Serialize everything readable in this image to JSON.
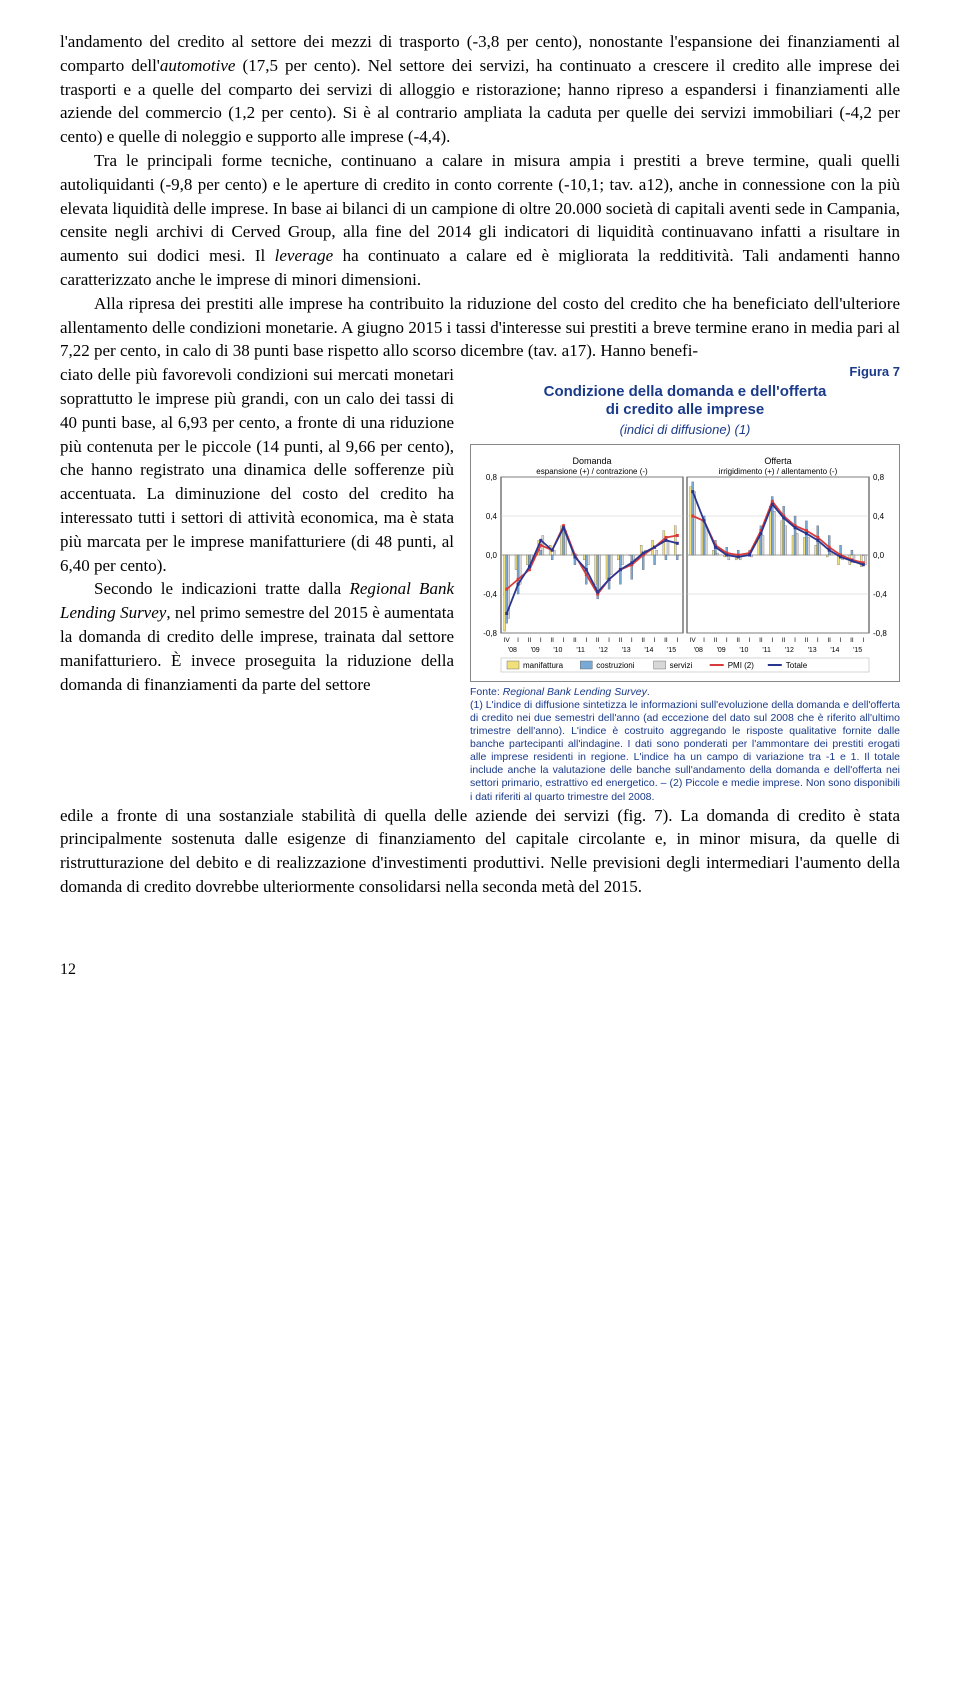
{
  "page": {
    "number": "12"
  },
  "para1": "l'andamento del credito al settore dei mezzi di trasporto (-3,8 per cento), nonostante l'espansione dei finanziamenti al comparto dell'",
  "para1_it": "automotive",
  "para1b": " (17,5 per cento). Nel settore dei servizi, ha continuato a crescere il credito alle imprese dei trasporti e a quelle del comparto dei servizi di alloggio e ristorazione; hanno ripreso a espandersi i finanziamenti alle aziende del commercio (1,2 per cento). Si è al contrario ampliata la caduta per quelle dei servizi immobiliari (-4,2 per cento) e quelle di noleggio e supporto alle imprese (-4,4).",
  "para2": "Tra le principali forme tecniche, continuano a calare in misura ampia i prestiti a breve termine, quali quelli autoliquidanti (-9,8 per cento) e le aperture di credito in conto corrente (-10,1; tav. a12), anche in connessione con la più elevata liquidità delle imprese. In base ai bilanci di un campione di oltre 20.000 società di capitali aventi sede in Campania, censite negli archivi di Cerved Group, alla fine del 2014 gli indicatori di liquidità continuavano infatti a risultare in aumento sui dodici mesi. Il ",
  "para2_it": "leverage",
  "para2b": " ha continuato a calare ed è migliorata la redditività. Tali andamenti hanno caratterizzato anche le imprese di minori dimensioni.",
  "para3": "Alla ripresa dei prestiti alle imprese ha contribuito la riduzione del costo del credito che ha beneficiato dell'ulteriore allentamento delle condizioni monetarie. A giugno 2015 i tassi d'interesse sui prestiti a breve termine erano in media pari al 7,22 per cento, in calo di 38 punti base rispetto allo scorso dicembre (tav. a17). Hanno benefi-",
  "left1": "ciato delle più favorevoli condizioni sui mercati monetari soprattutto le imprese più grandi, con un calo dei tassi di 40 punti base, al 6,93 per cento, a fronte di una riduzione più contenuta per le piccole (14 punti, al 9,66 per cento), che hanno registrato una dinamica delle sofferenze più accentuata. La diminuzione del costo del credito ha interessato tutti i settori di attività economica, ma è stata più marcata per le imprese manifatturiere (di 48 punti, al 6,40 per cento).",
  "left2a": "Secondo le indicazioni tratte dalla ",
  "left2_it": "Regional Bank Lending Survey",
  "left2b": ", nel primo semestre del 2015 è aumentata la domanda di credito delle imprese, trainata dal settore manifatturiero. È invece proseguita la riduzione della domanda di finanziamenti da parte del settore ",
  "tail": "edile a fronte di una sostanziale stabilità di quella delle aziende dei servizi (fig. 7). La domanda di credito è stata principalmente sostenuta dalle esigenze di finanziamento del capitale circolante e, in minor misura, da quelle di ristrutturazione del debito e di realizzazione d'investimenti produttivi. Nelle previsioni degli intermediari l'aumento della domanda di credito dovrebbe ulteriormente consolidarsi nella seconda metà del 2015.",
  "figure": {
    "label": "Figura 7",
    "title1": "Condizione della domanda e dell'offerta",
    "title2": "di credito alle imprese",
    "subtitle": "(indici di diffusione) (1)",
    "footnote": "Fonte: Regional Bank Lending Survey.\n(1) L'indice di diffusione sintetizza le informazioni sull'evoluzione della domanda e dell'offerta di credito nei due semestri dell'anno (ad eccezione del dato sul 2008 che è riferito all'ultimo trimestre dell'anno). L'indice è costruito aggregando le risposte qualitative fornite dalle banche partecipanti all'indagine. I dati sono ponderati per l'ammontare dei prestiti erogati alle imprese residenti in regione. L'indice ha un campo di variazione tra -1 e 1. Il totale include anche la valutazione delle banche sull'andamento della domanda e dell'offerta nei settori primario, estrattivo ed energetico. – (2) Piccole e medie imprese. Non sono disponibili i dati riferiti al quarto trimestre del 2008.",
    "chart": {
      "panel_left": {
        "title": "Domanda",
        "subtitle": "espansione (+) / contrazione (-)"
      },
      "panel_right": {
        "title": "Offerta",
        "subtitle": "irrigidimento (+) / allentamento (-)"
      },
      "ylim": [
        -0.8,
        0.8
      ],
      "yticks": [
        -0.8,
        -0.4,
        0.0,
        0.4,
        0.8
      ],
      "ytick_labels": [
        "-0,8",
        "-0,4",
        "0,0",
        "0,4",
        "0,8"
      ],
      "periods": [
        "IV",
        "I",
        "II",
        "I",
        "II",
        "I",
        "II",
        "I",
        "II",
        "I",
        "II",
        "I",
        "II",
        "I",
        "II",
        "I"
      ],
      "years": [
        "'08",
        "'09",
        "'10",
        "'11",
        "'12",
        "'13",
        "'14",
        "'15"
      ],
      "legend": [
        "manifattura",
        "costruzioni",
        "servizi",
        "PMI (2)",
        "Totale"
      ],
      "colors": {
        "manifattura": "#f2e07b",
        "costruzioni": "#7aa9d6",
        "servizi": "#d8d8d8",
        "pmi": "#d83b3b",
        "totale": "#2a358f",
        "grid": "#c8c8c8",
        "axis": "#000"
      },
      "bar_width": 0.18,
      "demand": {
        "manifattura": [
          -0.78,
          -0.15,
          -0.1,
          0.15,
          0.1,
          0.3,
          0.05,
          -0.05,
          -0.3,
          -0.25,
          -0.05,
          0.0,
          0.1,
          0.15,
          0.25,
          0.3
        ],
        "costruzioni": [
          -0.7,
          -0.4,
          -0.15,
          0.05,
          -0.05,
          0.25,
          -0.1,
          -0.3,
          -0.45,
          -0.35,
          -0.3,
          -0.25,
          -0.15,
          -0.1,
          -0.05,
          -0.05
        ],
        "servizi": [
          -0.65,
          -0.3,
          -0.1,
          0.2,
          0.05,
          0.25,
          0.0,
          -0.1,
          -0.35,
          -0.2,
          -0.1,
          -0.05,
          0.05,
          0.05,
          0.15,
          0.0
        ],
        "pmi": [
          -0.35,
          -0.25,
          -0.15,
          0.1,
          0.05,
          0.3,
          0.0,
          -0.2,
          -0.4,
          -0.25,
          -0.15,
          -0.1,
          0.0,
          0.08,
          0.18,
          0.2
        ],
        "totale": [
          -0.6,
          -0.3,
          -0.12,
          0.15,
          0.05,
          0.28,
          -0.02,
          -0.15,
          -0.38,
          -0.25,
          -0.15,
          -0.08,
          0.02,
          0.08,
          0.15,
          0.12
        ]
      },
      "supply": {
        "manifattura": [
          0.7,
          0.35,
          0.05,
          -0.02,
          -0.05,
          0.0,
          0.18,
          0.5,
          0.35,
          0.2,
          0.18,
          0.1,
          -0.02,
          -0.1,
          -0.1,
          -0.12
        ],
        "costruzioni": [
          0.75,
          0.4,
          0.15,
          0.08,
          0.05,
          0.05,
          0.3,
          0.6,
          0.5,
          0.4,
          0.35,
          0.3,
          0.2,
          0.1,
          0.05,
          0.0
        ],
        "servizi": [
          0.65,
          0.3,
          0.02,
          -0.05,
          -0.05,
          -0.02,
          0.2,
          0.45,
          0.3,
          0.22,
          0.18,
          0.12,
          0.02,
          -0.05,
          -0.08,
          -0.1
        ],
        "pmi": [
          0.4,
          0.35,
          0.1,
          0.02,
          0.0,
          0.02,
          0.25,
          0.55,
          0.4,
          0.3,
          0.25,
          0.18,
          0.08,
          0.0,
          -0.05,
          -0.08
        ],
        "totale": [
          0.65,
          0.35,
          0.08,
          0.0,
          -0.02,
          0.0,
          0.22,
          0.52,
          0.38,
          0.28,
          0.22,
          0.15,
          0.05,
          -0.02,
          -0.06,
          -0.1
        ]
      }
    }
  }
}
